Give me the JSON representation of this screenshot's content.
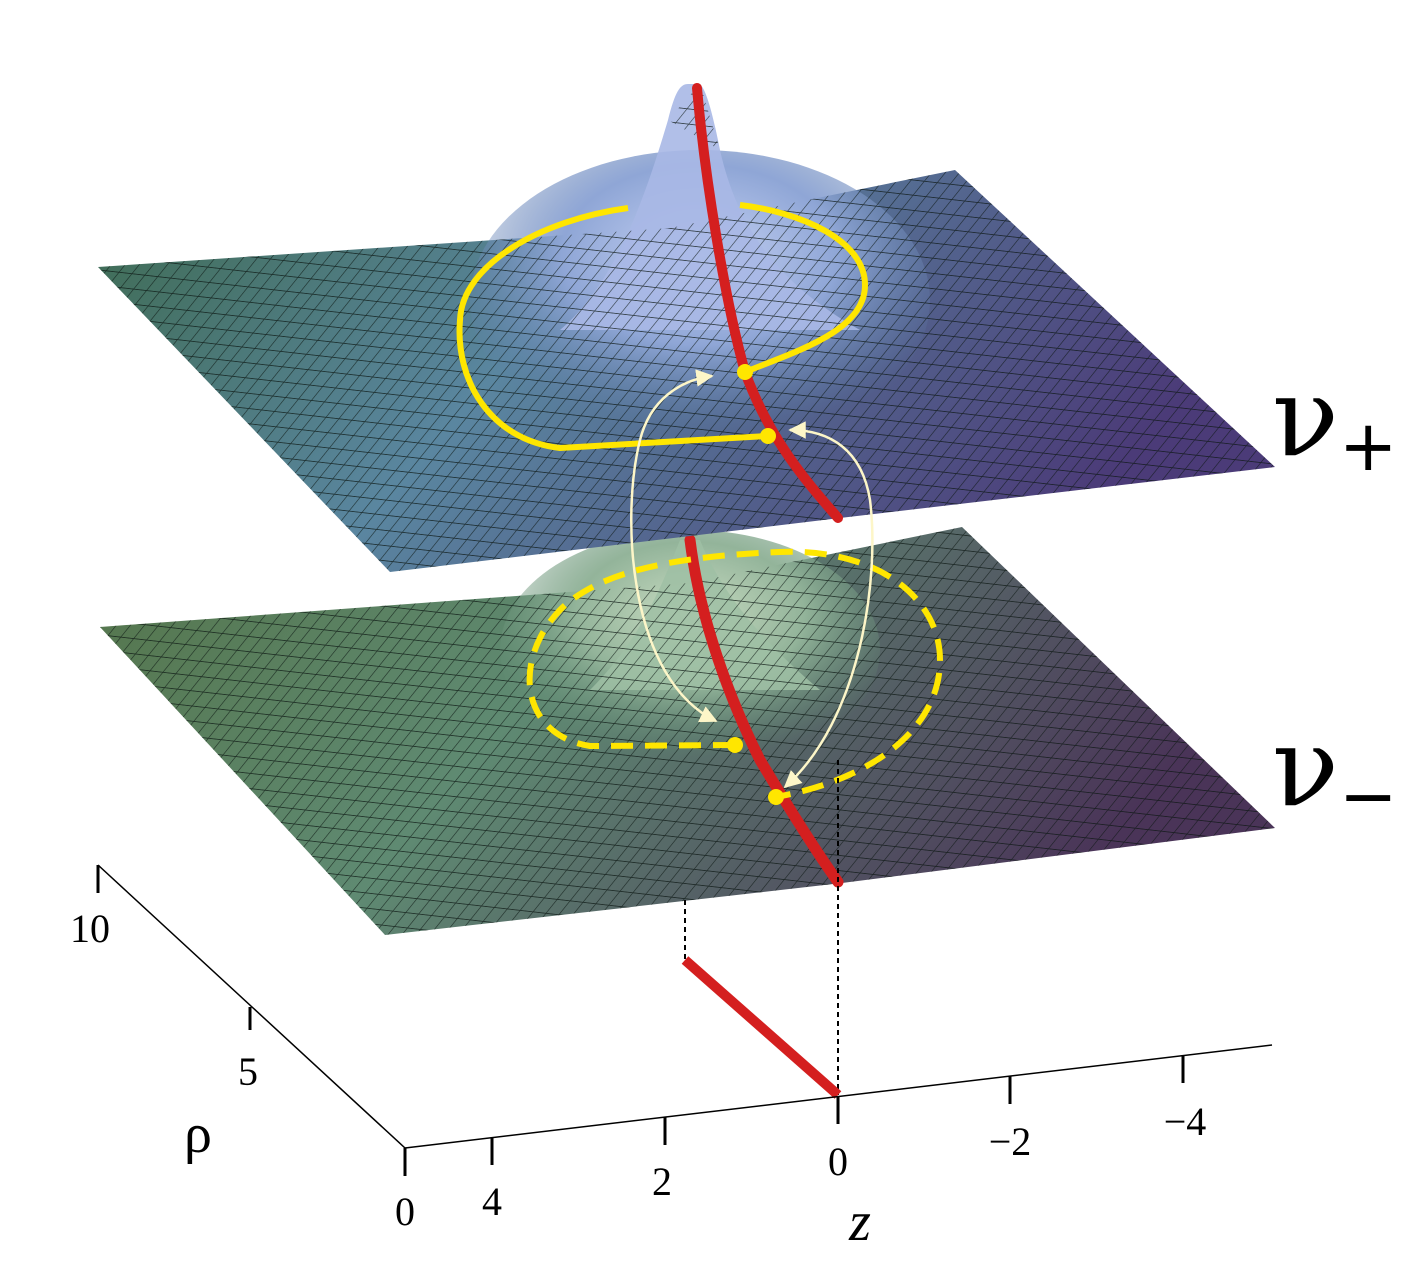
{
  "sheets": [
    {
      "id": "upper",
      "label": "ν",
      "subscript": "+"
    },
    {
      "id": "lower",
      "label": "ν",
      "subscript": "−"
    }
  ],
  "axes": {
    "rho": {
      "title": "ρ",
      "ticks": [
        "0",
        "5",
        "10"
      ]
    },
    "z": {
      "title": "z",
      "ticks": [
        "4",
        "2",
        "0",
        "−2",
        "−4"
      ]
    }
  },
  "colors": {
    "branch_cut": "#d41f1f",
    "upper_loop": "#ffe600",
    "lower_loop": "#ffe600",
    "connector_arrows": "#fdf6c8",
    "surface_near": "#4f7a5a",
    "surface_far": "#4a3a6e",
    "peak": "#a9b8e6"
  }
}
